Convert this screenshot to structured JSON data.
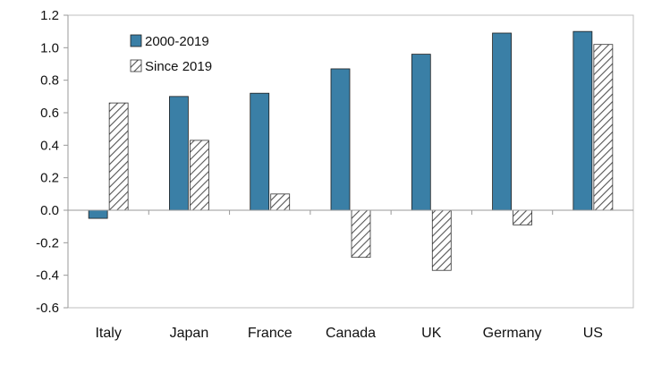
{
  "chart_data": {
    "type": "bar",
    "categories": [
      "Italy",
      "Japan",
      "France",
      "Canada",
      "UK",
      "Germany",
      "US"
    ],
    "series": [
      {
        "name": "2000-2019",
        "values": [
          -0.05,
          0.7,
          0.72,
          0.87,
          0.96,
          1.09,
          1.1
        ],
        "color": "#3a7fa6",
        "fill": "solid"
      },
      {
        "name": "Since 2019",
        "values": [
          0.66,
          0.43,
          0.1,
          -0.29,
          -0.37,
          -0.09,
          1.02
        ],
        "color": "#555555",
        "fill": "hatched"
      }
    ],
    "title": "",
    "xlabel": "",
    "ylabel": "",
    "ylim": [
      -0.6,
      1.2
    ],
    "yticks": [
      "1.2",
      "1.0",
      "0.8",
      "0.6",
      "0.4",
      "0.2",
      "0.0",
      "-0.2",
      "-0.4",
      "-0.6"
    ],
    "grid": false,
    "legend_position": "top-left"
  }
}
